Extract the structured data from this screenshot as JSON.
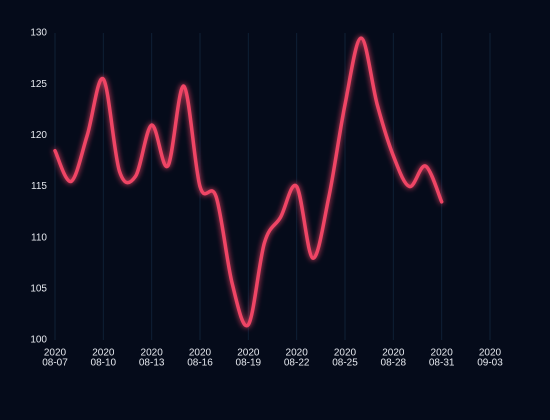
{
  "chart_data": {
    "type": "line",
    "x": [
      "2020-08-07",
      "2020-08-08",
      "2020-08-09",
      "2020-08-10",
      "2020-08-11",
      "2020-08-12",
      "2020-08-13",
      "2020-08-14",
      "2020-08-15",
      "2020-08-16",
      "2020-08-17",
      "2020-08-18",
      "2020-08-19",
      "2020-08-20",
      "2020-08-21",
      "2020-08-22",
      "2020-08-23",
      "2020-08-24",
      "2020-08-25",
      "2020-08-26",
      "2020-08-27",
      "2020-08-28",
      "2020-08-29",
      "2020-08-30",
      "2020-08-31"
    ],
    "series": [
      {
        "color": "#ef4565",
        "values": [
          118.5,
          115.5,
          120,
          125.5,
          116.5,
          116,
          121,
          117,
          124.8,
          115,
          114,
          105.5,
          101.5,
          109.5,
          112,
          115,
          108,
          114,
          123,
          129.5,
          123,
          118,
          115,
          117,
          113.5
        ]
      }
    ],
    "xlim": [
      "2020-08-07",
      "2020-09-03"
    ],
    "xticks": [
      {
        "value": "2020-08-07",
        "label": [
          "2020",
          "08-07"
        ]
      },
      {
        "value": "2020-08-10",
        "label": [
          "2020",
          "08-10"
        ]
      },
      {
        "value": "2020-08-13",
        "label": [
          "2020",
          "08-13"
        ]
      },
      {
        "value": "2020-08-16",
        "label": [
          "2020",
          "08-16"
        ]
      },
      {
        "value": "2020-08-19",
        "label": [
          "2020",
          "08-19"
        ]
      },
      {
        "value": "2020-08-22",
        "label": [
          "2020",
          "08-22"
        ]
      },
      {
        "value": "2020-08-25",
        "label": [
          "2020",
          "08-25"
        ]
      },
      {
        "value": "2020-08-28",
        "label": [
          "2020",
          "08-28"
        ]
      },
      {
        "value": "2020-08-31",
        "label": [
          "2020",
          "08-31"
        ]
      },
      {
        "value": "2020-09-03",
        "label": [
          "2020",
          "09-03"
        ]
      }
    ],
    "ylim": [
      100,
      130
    ],
    "yticks": [
      100,
      105,
      110,
      115,
      120,
      125,
      130
    ],
    "grid": true
  }
}
